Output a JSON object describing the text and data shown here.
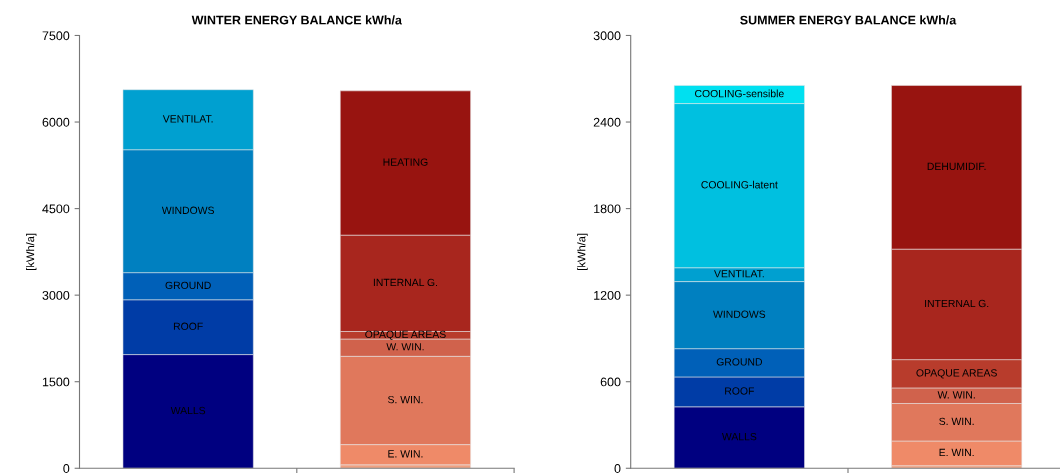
{
  "chart_data": [
    {
      "type": "bar",
      "stacked": true,
      "title": "WINTER ENERGY BALANCE kWh/a",
      "ylabel": "[kWh/a]",
      "categories": [
        null,
        null
      ],
      "ylim": [
        0,
        7500
      ],
      "yticks": [
        0,
        1500,
        3000,
        4500,
        6000,
        7500
      ],
      "grid": false,
      "legend": false,
      "series": [
        {
          "name": "WALLS",
          "color": "#000080",
          "values": [
            1970,
            null
          ]
        },
        {
          "name": "ROOF",
          "color": "#003ca6",
          "values": [
            950,
            null
          ]
        },
        {
          "name": "GROUND",
          "color": "#0060b8",
          "values": [
            470,
            null
          ]
        },
        {
          "name": "WINDOWS",
          "color": "#0080c0",
          "values": [
            2130,
            null
          ]
        },
        {
          "name": "VENTILAT.",
          "color": "#00a0d0",
          "values": [
            1040,
            null
          ]
        },
        {
          "color": "#f0a080",
          "values": [
            null,
            60
          ]
        },
        {
          "name": "E. WIN.",
          "color": "#ef8a68",
          "values": [
            null,
            350
          ]
        },
        {
          "name": "S. WIN.",
          "color": "#e0785c",
          "values": [
            null,
            1530
          ]
        },
        {
          "name": "W. WIN.",
          "color": "#d0624c",
          "values": [
            null,
            300
          ]
        },
        {
          "name": "OPAQUE AREAS",
          "color": "#b83c2c",
          "values": [
            null,
            130
          ]
        },
        {
          "name": "INTERNAL G.",
          "color": "#a8261e",
          "values": [
            null,
            1670
          ]
        },
        {
          "name": "HEATING",
          "color": "#981410",
          "values": [
            null,
            2500
          ]
        }
      ]
    },
    {
      "type": "bar",
      "stacked": true,
      "title": "SUMMER ENERGY BALANCE kWh/a",
      "ylabel": "[kWh/a]",
      "categories": [
        null,
        null
      ],
      "ylim": [
        0,
        3000
      ],
      "yticks": [
        0,
        600,
        1200,
        1800,
        2400,
        3000
      ],
      "grid": false,
      "legend": false,
      "series": [
        {
          "name": "WALLS",
          "color": "#000080",
          "values": [
            426,
            null
          ]
        },
        {
          "name": "ROOF",
          "color": "#003ca6",
          "values": [
            207,
            null
          ]
        },
        {
          "name": "GROUND",
          "color": "#0060b8",
          "values": [
            196,
            null
          ]
        },
        {
          "name": "WINDOWS",
          "color": "#0080c0",
          "values": [
            465,
            null
          ]
        },
        {
          "name": "VENTILAT.",
          "color": "#00a0d0",
          "values": [
            96,
            null
          ]
        },
        {
          "name": "COOLING-latent",
          "color": "#00c0e0",
          "values": [
            1138,
            null
          ]
        },
        {
          "name": "COOLING-sensible",
          "color": "#00e0f0",
          "values": [
            126,
            null
          ]
        },
        {
          "color": "#f0a080",
          "values": [
            null,
            18
          ]
        },
        {
          "name": "E. WIN.",
          "color": "#ef8a68",
          "values": [
            null,
            171
          ]
        },
        {
          "name": "S. WIN.",
          "color": "#e0785c",
          "values": [
            null,
            260
          ]
        },
        {
          "name": "W. WIN.",
          "color": "#d0624c",
          "values": [
            null,
            108
          ]
        },
        {
          "name": "OPAQUE AREAS",
          "color": "#b83c2c",
          "values": [
            null,
            196
          ]
        },
        {
          "name": "INTERNAL G.",
          "color": "#a8261e",
          "values": [
            null,
            766
          ]
        },
        {
          "name": "DEHUMIDIF.",
          "color": "#981410",
          "values": [
            null,
            1135
          ]
        }
      ]
    }
  ]
}
